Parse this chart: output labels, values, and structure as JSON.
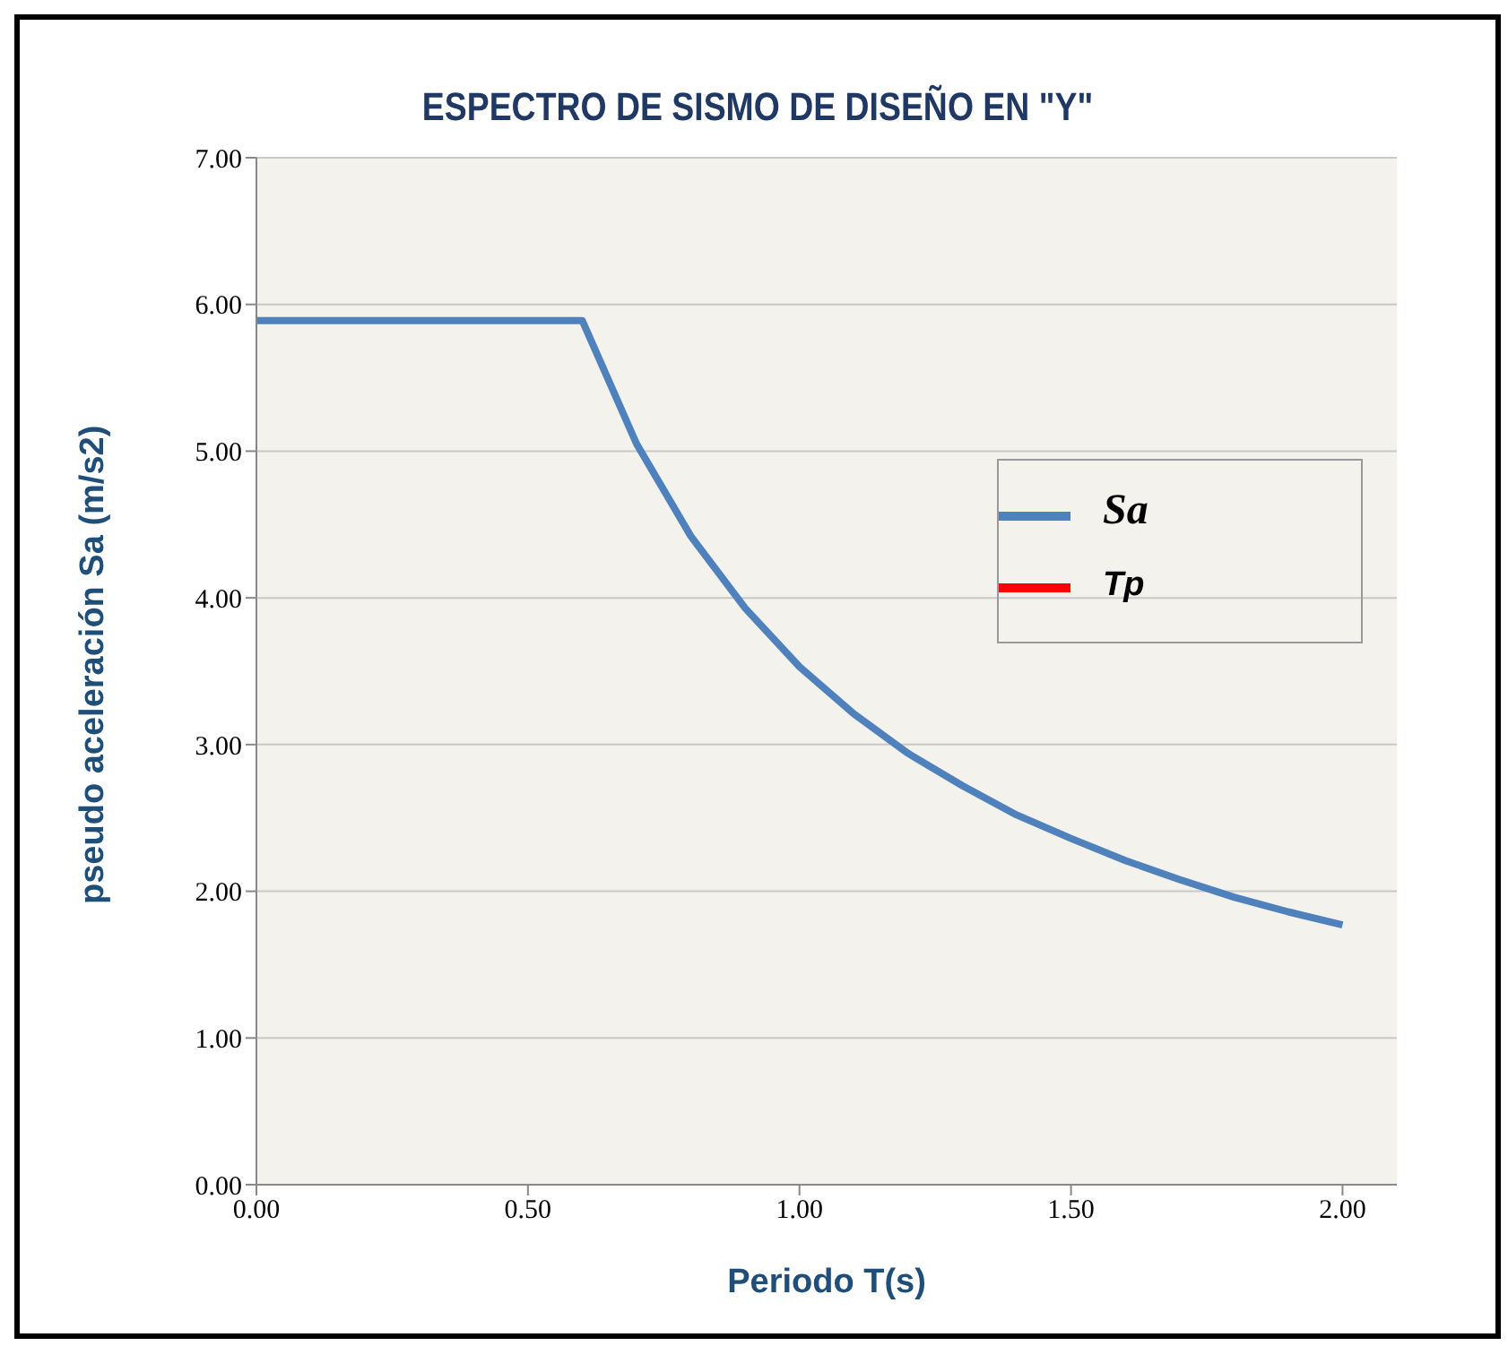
{
  "chart_data": {
    "type": "line",
    "title": "ESPECTRO DE SISMO DE DISEÑO EN \"Y\"",
    "xlabel": "Periodo T(s)",
    "ylabel": "pseudo aceleración Sa (m/s2)",
    "x": [
      0,
      0.1,
      0.2,
      0.3,
      0.4,
      0.5,
      0.6,
      0.7,
      0.8,
      0.9,
      1.0,
      1.1,
      1.2,
      1.3,
      1.4,
      1.5,
      1.6,
      1.7,
      1.8,
      1.9,
      2.0
    ],
    "series": [
      {
        "name": "Sa",
        "color": "#4f81bd",
        "values": [
          5.89,
          5.89,
          5.89,
          5.89,
          5.89,
          5.89,
          5.89,
          5.05,
          4.42,
          3.93,
          3.53,
          3.21,
          2.94,
          2.72,
          2.52,
          2.36,
          2.21,
          2.08,
          1.96,
          1.86,
          1.77
        ]
      },
      {
        "name": "Tp",
        "color": "#ff0000",
        "values": [
          null,
          null,
          null,
          null,
          null,
          null,
          null,
          null,
          null,
          null,
          null,
          null,
          null,
          null,
          null,
          null,
          null,
          null,
          null,
          null,
          null
        ]
      }
    ],
    "xlim": [
      0,
      2.1
    ],
    "xticks": [
      {
        "value": 0,
        "label": "0.00"
      },
      {
        "value": 0.5,
        "label": "0.50"
      },
      {
        "value": 1,
        "label": "1.00"
      },
      {
        "value": 1.5,
        "label": "1.50"
      },
      {
        "value": 2,
        "label": "2.00"
      }
    ],
    "ylim": [
      0,
      7
    ],
    "yticks": [
      {
        "value": 0,
        "label": "0.00"
      },
      {
        "value": 1,
        "label": "1.00"
      },
      {
        "value": 2,
        "label": "2.00"
      },
      {
        "value": 3,
        "label": "3.00"
      },
      {
        "value": 4,
        "label": "4.00"
      },
      {
        "value": 5,
        "label": "5.00"
      },
      {
        "value": 6,
        "label": "6.00"
      },
      {
        "value": 7,
        "label": "7.00"
      }
    ],
    "grid": "y",
    "legend": "right",
    "marker": "none",
    "line_style": "solid"
  }
}
